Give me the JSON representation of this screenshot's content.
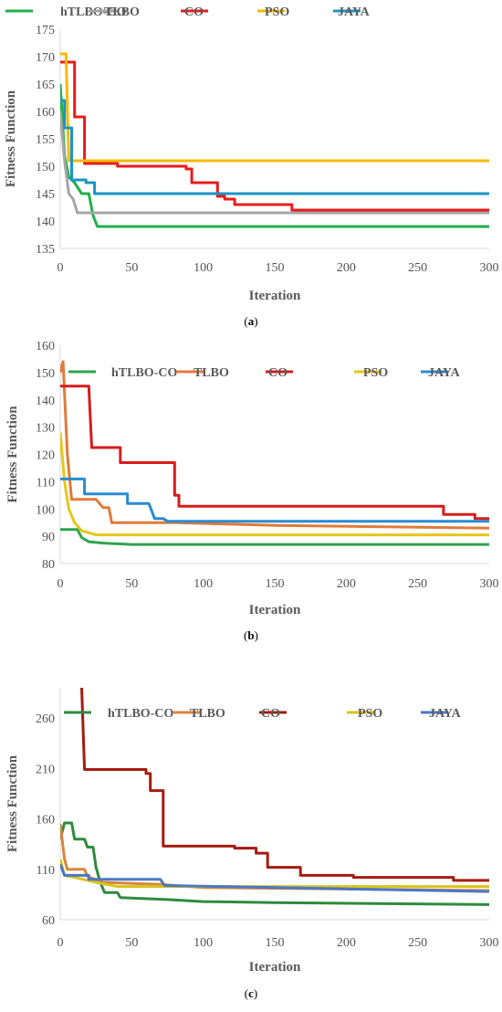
{
  "chart_data": [
    {
      "type": "line",
      "caption_letter": "a",
      "xlabel": "Iteration",
      "ylabel": "Fitness Function",
      "xlim": [
        0,
        300
      ],
      "ylim": [
        135,
        175
      ],
      "xticks": [
        0,
        50,
        100,
        150,
        200,
        250,
        300
      ],
      "yticks": [
        135,
        140,
        145,
        150,
        155,
        160,
        165,
        170,
        175
      ],
      "grid": false,
      "legend_position": "top",
      "series": [
        {
          "name": "hTLBO-CO",
          "color": "#1fb14b",
          "points": [
            [
              0,
              165
            ],
            [
              3,
              152
            ],
            [
              6,
              148
            ],
            [
              10,
              147
            ],
            [
              15,
              145
            ],
            [
              20,
              145
            ],
            [
              23,
              141
            ],
            [
              26,
              139
            ],
            [
              300,
              139
            ]
          ]
        },
        {
          "name": "TLBO",
          "color": "#a6a6a6",
          "points": [
            [
              0,
              160
            ],
            [
              3,
              151
            ],
            [
              6,
              145
            ],
            [
              9,
              144
            ],
            [
              12,
              141.5
            ],
            [
              300,
              141.5
            ]
          ]
        },
        {
          "name": "CO",
          "color": "#e81c1c",
          "points": [
            [
              0,
              169
            ],
            [
              10,
              169
            ],
            [
              10,
              159
            ],
            [
              17,
              159
            ],
            [
              17,
              150.5
            ],
            [
              40,
              150.5
            ],
            [
              40,
              150
            ],
            [
              88,
              150
            ],
            [
              88,
              149.5
            ],
            [
              92,
              149.5
            ],
            [
              92,
              147
            ],
            [
              110,
              147
            ],
            [
              110,
              144.5
            ],
            [
              115,
              144.5
            ],
            [
              115,
              144
            ],
            [
              122,
              144
            ],
            [
              122,
              143
            ],
            [
              162,
              143
            ],
            [
              162,
              142
            ],
            [
              300,
              142
            ]
          ]
        },
        {
          "name": "PSO",
          "color": "#f6b900",
          "points": [
            [
              0,
              170.5
            ],
            [
              4,
              170.5
            ],
            [
              6,
              151
            ],
            [
              300,
              151
            ]
          ]
        },
        {
          "name": "JAYA",
          "color": "#1a95c5",
          "points": [
            [
              0,
              162
            ],
            [
              3,
              162
            ],
            [
              3,
              157
            ],
            [
              8,
              157
            ],
            [
              8,
              147.5
            ],
            [
              18,
              147.5
            ],
            [
              18,
              147
            ],
            [
              24,
              147
            ],
            [
              24,
              145
            ],
            [
              300,
              145
            ]
          ]
        }
      ]
    },
    {
      "type": "line",
      "caption_letter": "b",
      "xlabel": "Iteration",
      "ylabel": "Fitness Function",
      "xlim": [
        0,
        300
      ],
      "ylim": [
        80,
        160
      ],
      "xticks": [
        0,
        50,
        100,
        150,
        200,
        250,
        300
      ],
      "yticks": [
        80,
        90,
        100,
        110,
        120,
        130,
        140,
        150,
        160
      ],
      "grid": false,
      "legend_position": "top",
      "series": [
        {
          "name": "hTLBO-CO",
          "color": "#2ea44f",
          "points": [
            [
              0,
              92.5
            ],
            [
              12,
              92.5
            ],
            [
              15,
              89.5
            ],
            [
              20,
              88
            ],
            [
              30,
              87.5
            ],
            [
              50,
              87
            ],
            [
              300,
              87
            ]
          ]
        },
        {
          "name": "TLBO",
          "color": "#e07b39",
          "points": [
            [
              0,
              150
            ],
            [
              2,
              154
            ],
            [
              5,
              120
            ],
            [
              8,
              103.5
            ],
            [
              25,
              103.5
            ],
            [
              30,
              100.5
            ],
            [
              34,
              100.5
            ],
            [
              36,
              95
            ],
            [
              80,
              95
            ],
            [
              150,
              94
            ],
            [
              300,
              93
            ]
          ]
        },
        {
          "name": "CO",
          "color": "#d61c1c",
          "points": [
            [
              0,
              145
            ],
            [
              20,
              145
            ],
            [
              22,
              122.5
            ],
            [
              42,
              122.5
            ],
            [
              42,
              117
            ],
            [
              80,
              117
            ],
            [
              80,
              105
            ],
            [
              83,
              105
            ],
            [
              83,
              101
            ],
            [
              268,
              101
            ],
            [
              268,
              98
            ],
            [
              290,
              98
            ],
            [
              290,
              96.5
            ],
            [
              300,
              96.5
            ]
          ]
        },
        {
          "name": "PSO",
          "color": "#e6c619",
          "points": [
            [
              0,
              128
            ],
            [
              3,
              110
            ],
            [
              6,
              100
            ],
            [
              10,
              95
            ],
            [
              15,
              92
            ],
            [
              25,
              90.5
            ],
            [
              300,
              90.5
            ]
          ]
        },
        {
          "name": "JAYA",
          "color": "#2b8bd1",
          "points": [
            [
              0,
              111
            ],
            [
              17,
              111
            ],
            [
              17,
              105.5
            ],
            [
              47,
              105.5
            ],
            [
              47,
              102
            ],
            [
              62,
              102
            ],
            [
              66,
              96.5
            ],
            [
              72,
              96.5
            ],
            [
              75,
              95.5
            ],
            [
              300,
              95.5
            ]
          ]
        }
      ]
    },
    {
      "type": "line",
      "caption_letter": "c",
      "xlabel": "Iteration",
      "ylabel": "Fitness Function",
      "xlim": [
        0,
        300
      ],
      "ylim": [
        60,
        290
      ],
      "xticks": [
        0,
        50,
        100,
        150,
        200,
        250,
        300
      ],
      "yticks": [
        60,
        110,
        160,
        210,
        260
      ],
      "grid": false,
      "legend_position": "top",
      "series": [
        {
          "name": "hTLBO-CO",
          "color": "#2e8b3e",
          "points": [
            [
              0,
              140
            ],
            [
              3,
              156
            ],
            [
              8,
              156
            ],
            [
              10,
              140
            ],
            [
              17,
              140
            ],
            [
              19,
              132
            ],
            [
              23,
              132
            ],
            [
              25,
              112
            ],
            [
              28,
              97
            ],
            [
              31,
              87
            ],
            [
              40,
              87
            ],
            [
              42,
              82
            ],
            [
              75,
              80
            ],
            [
              100,
              78
            ],
            [
              150,
              77
            ],
            [
              300,
              75
            ]
          ]
        },
        {
          "name": "TLBO",
          "color": "#d9853b",
          "points": [
            [
              0,
              155
            ],
            [
              3,
              120
            ],
            [
              5,
              110
            ],
            [
              17,
              110
            ],
            [
              19,
              103
            ],
            [
              30,
              97
            ],
            [
              70,
              95
            ],
            [
              100,
              92
            ],
            [
              300,
              89
            ]
          ]
        },
        {
          "name": "CO",
          "color": "#a31c10",
          "points": [
            [
              15,
              290
            ],
            [
              17,
              209
            ],
            [
              60,
              209
            ],
            [
              60,
              205
            ],
            [
              63,
              205
            ],
            [
              63,
              188
            ],
            [
              72,
              188
            ],
            [
              72,
              133
            ],
            [
              122,
              133
            ],
            [
              122,
              131
            ],
            [
              137,
              131
            ],
            [
              137,
              126
            ],
            [
              145,
              126
            ],
            [
              145,
              112
            ],
            [
              168,
              112
            ],
            [
              168,
              104
            ],
            [
              205,
              104
            ],
            [
              205,
              102
            ],
            [
              275,
              102
            ],
            [
              275,
              99
            ],
            [
              300,
              99
            ]
          ]
        },
        {
          "name": "PSO",
          "color": "#d8c41a",
          "points": [
            [
              0,
              120
            ],
            [
              3,
              104
            ],
            [
              10,
              102
            ],
            [
              25,
              97
            ],
            [
              40,
              93
            ],
            [
              300,
              93
            ]
          ]
        },
        {
          "name": "JAYA",
          "color": "#4b78c5",
          "points": [
            [
              0,
              115
            ],
            [
              3,
              104
            ],
            [
              20,
              104
            ],
            [
              20,
              100
            ],
            [
              70,
              100
            ],
            [
              73,
              94
            ],
            [
              300,
              88
            ]
          ]
        }
      ]
    }
  ]
}
